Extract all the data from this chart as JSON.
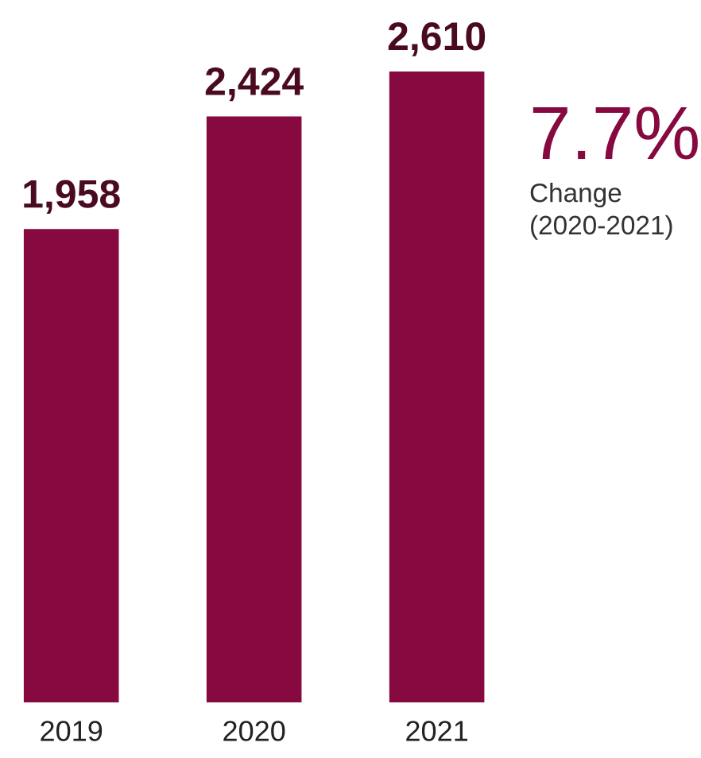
{
  "chart_data": {
    "type": "bar",
    "categories": [
      "2019",
      "2020",
      "2021"
    ],
    "values": [
      1958,
      2424,
      2610
    ],
    "value_labels": [
      "1,958",
      "2,424",
      "2,610"
    ],
    "color": "#860a3f",
    "annotations": [
      "7.7%",
      "Change\n(2020-2021)"
    ],
    "grid": false,
    "legend": false
  }
}
